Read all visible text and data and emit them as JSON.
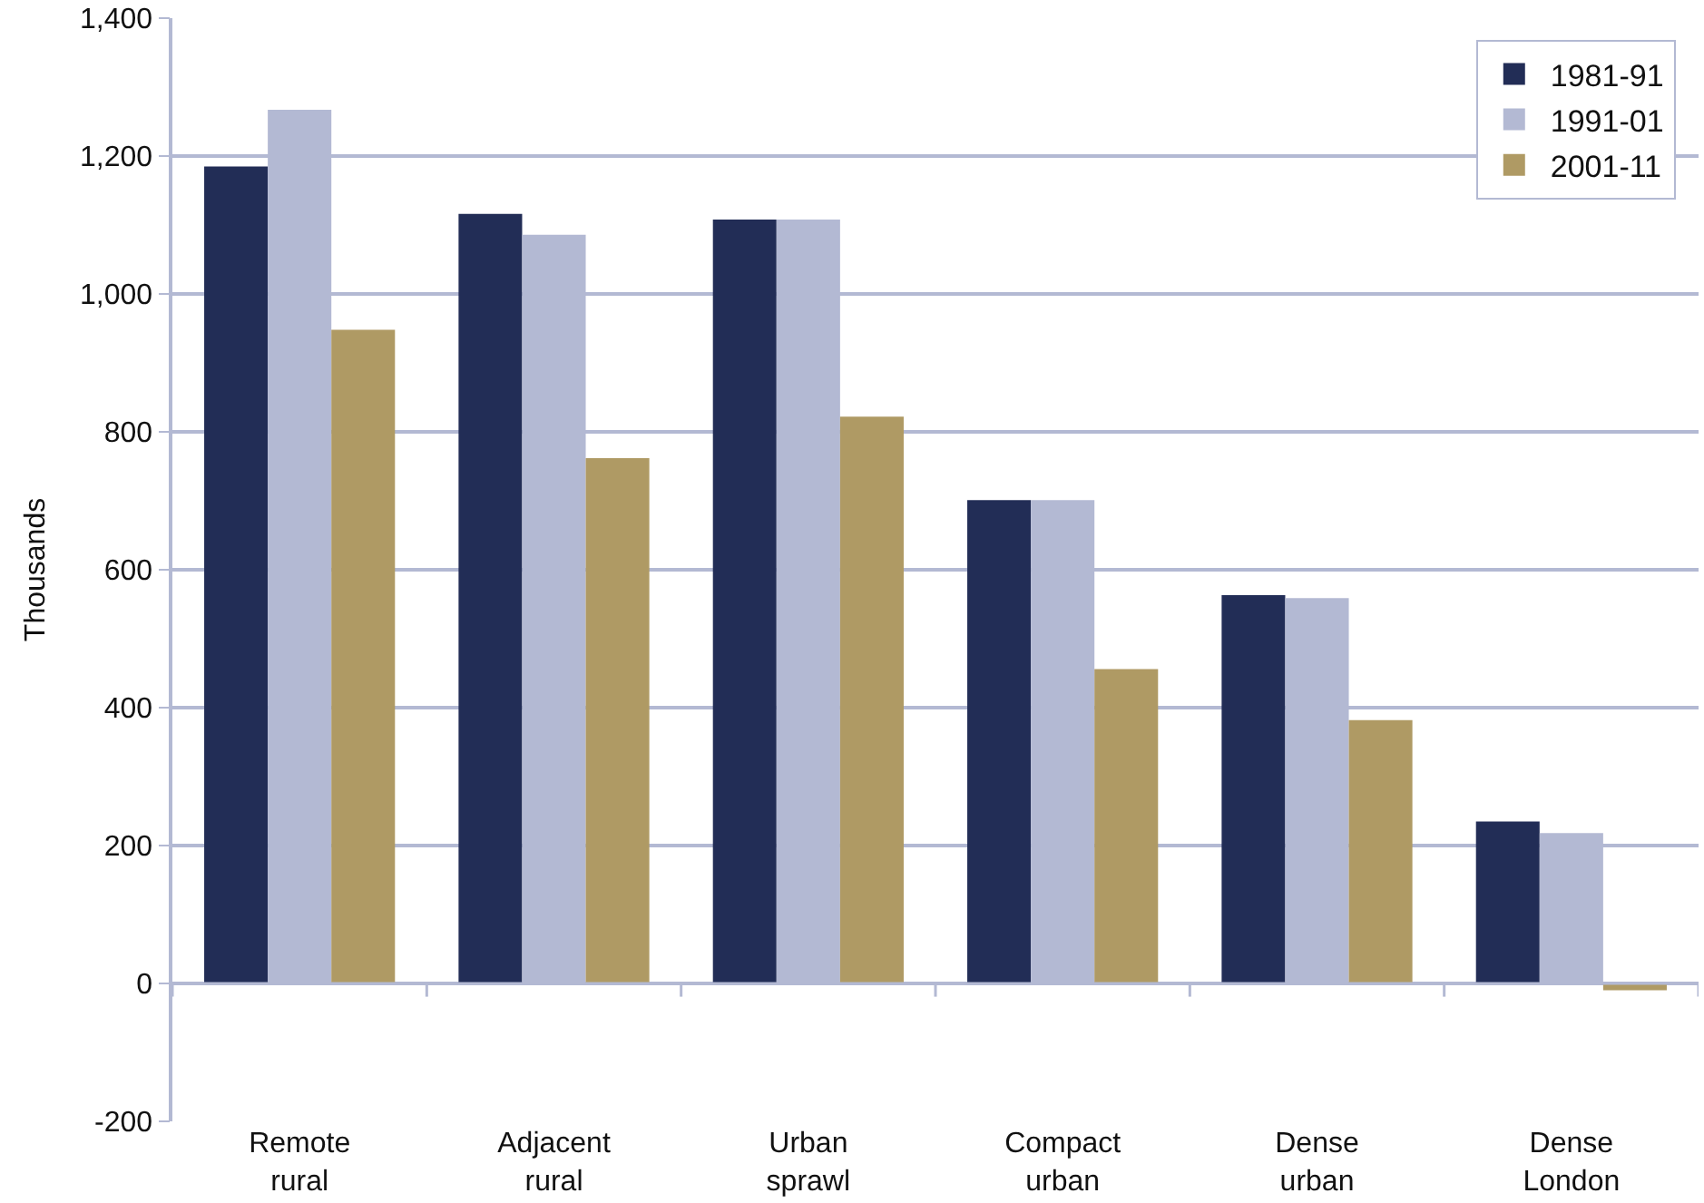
{
  "chart_data": {
    "type": "bar",
    "ylabel": "Thousands",
    "categories": [
      "Remote\nrural",
      "Adjacent\nrural",
      "Urban\nsprawl",
      "Compact\nurban",
      "Dense\nurban",
      "Dense\nLondon"
    ],
    "series": [
      {
        "name": "1981-91",
        "color": "#222d56",
        "values": [
          1185,
          1116,
          1108,
          701,
          563,
          235
        ]
      },
      {
        "name": "1991-01",
        "color": "#b3b9d3",
        "values": [
          1267,
          1086,
          1108,
          701,
          559,
          218
        ]
      },
      {
        "name": "2001-11",
        "color": "#af9a64",
        "values": [
          948,
          762,
          822,
          456,
          382,
          -10
        ]
      }
    ],
    "ylim": [
      -200,
      1400
    ],
    "yticks": [
      {
        "value": -200,
        "label": "-200"
      },
      0,
      200,
      400,
      600,
      800,
      {
        "value": 1000,
        "label": "1,000"
      },
      {
        "value": 1200,
        "label": "1,200"
      },
      {
        "value": 1400,
        "label": "1,400"
      }
    ],
    "grid": "y",
    "legend": "top right"
  }
}
